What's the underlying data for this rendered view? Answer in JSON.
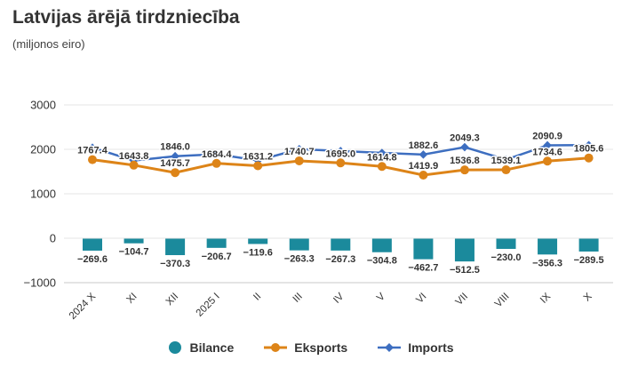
{
  "header": {
    "title": "Latvijas ārējā tirdzniecība",
    "subtitle": "(miljonos eiro)"
  },
  "chart_data": {
    "type": "combo",
    "categories": [
      "2024 X",
      "XI",
      "XII",
      "2025 I",
      "II",
      "III",
      "IV",
      "V",
      "VI",
      "VII",
      "VIII",
      "IX",
      "X"
    ],
    "series": [
      {
        "name": "Bilance",
        "type": "bar",
        "color": "#1b8a9c",
        "values": [
          -269.6,
          -104.7,
          -370.3,
          -206.7,
          -119.6,
          -263.3,
          -267.3,
          -304.8,
          -462.7,
          -512.5,
          -230.0,
          -356.3,
          -289.5
        ],
        "labeled_indices": [
          0,
          1,
          2,
          3,
          4,
          5,
          6,
          7,
          8,
          9,
          10,
          11,
          12
        ]
      },
      {
        "name": "Eksports",
        "type": "line",
        "marker": "circle",
        "color": "#dd8418",
        "values": [
          1767.4,
          1643.8,
          1475.7,
          1684.4,
          1631.2,
          1740.7,
          1695.0,
          1614.8,
          1419.9,
          1536.8,
          1539.1,
          1734.6,
          1805.6
        ],
        "labeled_indices": [
          0,
          1,
          2,
          3,
          4,
          5,
          6,
          7,
          8,
          9,
          10,
          11,
          12
        ]
      },
      {
        "name": "Imports",
        "type": "line",
        "marker": "diamond",
        "color": "#3d6ec0",
        "values": [
          2037.0,
          1748.5,
          1846.0,
          1891.1,
          1750.8,
          2004.0,
          1962.3,
          1919.6,
          1882.6,
          2049.3,
          1769.1,
          2090.9,
          2095.1
        ],
        "labeled_indices": [
          2,
          8,
          9,
          11
        ]
      }
    ],
    "title": "Latvijas ārējā tirdzniecība",
    "subtitle": "(miljonos eiro)",
    "xlabel": "",
    "ylabel": "",
    "ylim": [
      -1000,
      3000
    ],
    "yticks": [
      3000,
      2000,
      1000,
      0,
      -1000
    ],
    "grid": true,
    "legend_position": "bottom"
  },
  "legend": {
    "items": [
      {
        "label": "Bilance"
      },
      {
        "label": "Eksports"
      },
      {
        "label": "Imports"
      }
    ]
  },
  "colors": {
    "bilance": "#1b8a9c",
    "eksports": "#dd8418",
    "imports": "#3d6ec0",
    "text": "#333333",
    "gridline": "#e4e4e4",
    "axisline": "#c9c9c9"
  }
}
